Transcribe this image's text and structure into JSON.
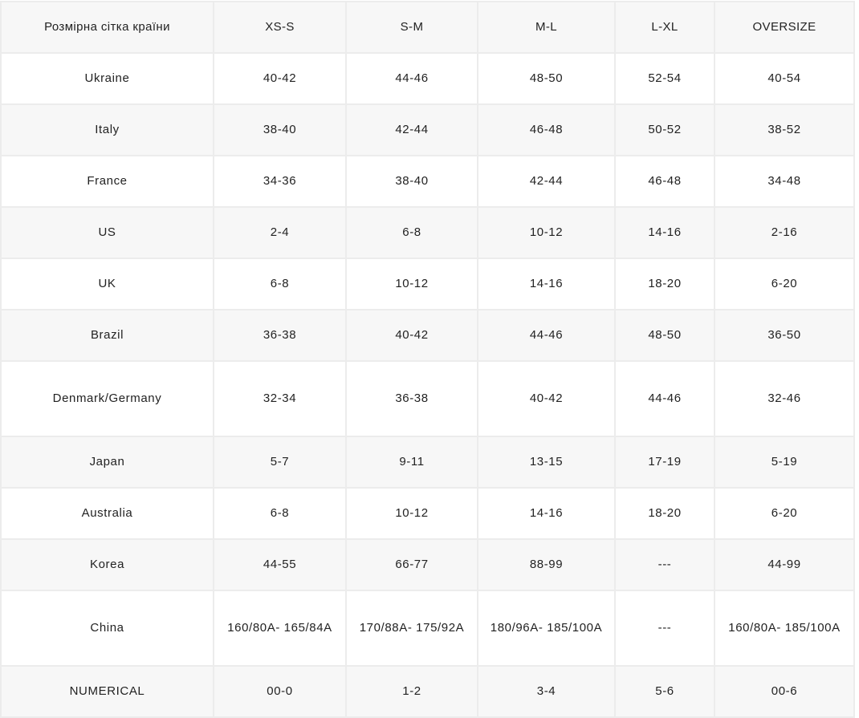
{
  "header": [
    "Розмірна сітка країни",
    "XS-S",
    "S-M",
    "M-L",
    "L-XL",
    "OVERSIZE"
  ],
  "rows": [
    [
      "Ukraine",
      "40-42",
      "44-46",
      "48-50",
      "52-54",
      "40-54"
    ],
    [
      "Italy",
      "38-40",
      "42-44",
      "46-48",
      "50-52",
      "38-52"
    ],
    [
      "France",
      "34-36",
      "38-40",
      "42-44",
      "46-48",
      "34-48"
    ],
    [
      "US",
      "2-4",
      "6-8",
      "10-12",
      "14-16",
      "2-16"
    ],
    [
      "UK",
      "6-8",
      "10-12",
      "14-16",
      "18-20",
      "6-20"
    ],
    [
      "Brazil",
      "36-38",
      "40-42",
      "44-46",
      "48-50",
      "36-50"
    ],
    [
      "Denmark/Germany",
      "32-34",
      "36-38",
      "40-42",
      "44-46",
      "32-46"
    ],
    [
      "Japan",
      "5-7",
      "9-11",
      "13-15",
      "17-19",
      "5-19"
    ],
    [
      "Australia",
      "6-8",
      "10-12",
      "14-16",
      "18-20",
      "6-20"
    ],
    [
      "Korea",
      "44-55",
      "66-77",
      "88-99",
      "---",
      "44-99"
    ],
    [
      "China",
      "160/80A- 165/84A",
      "170/88A- 175/92A",
      "180/96A- 185/100A",
      "---",
      "160/80A- 185/100A"
    ],
    [
      "NUMERICAL",
      "00-0",
      "1-2",
      "3-4",
      "5-6",
      "00-6"
    ]
  ]
}
